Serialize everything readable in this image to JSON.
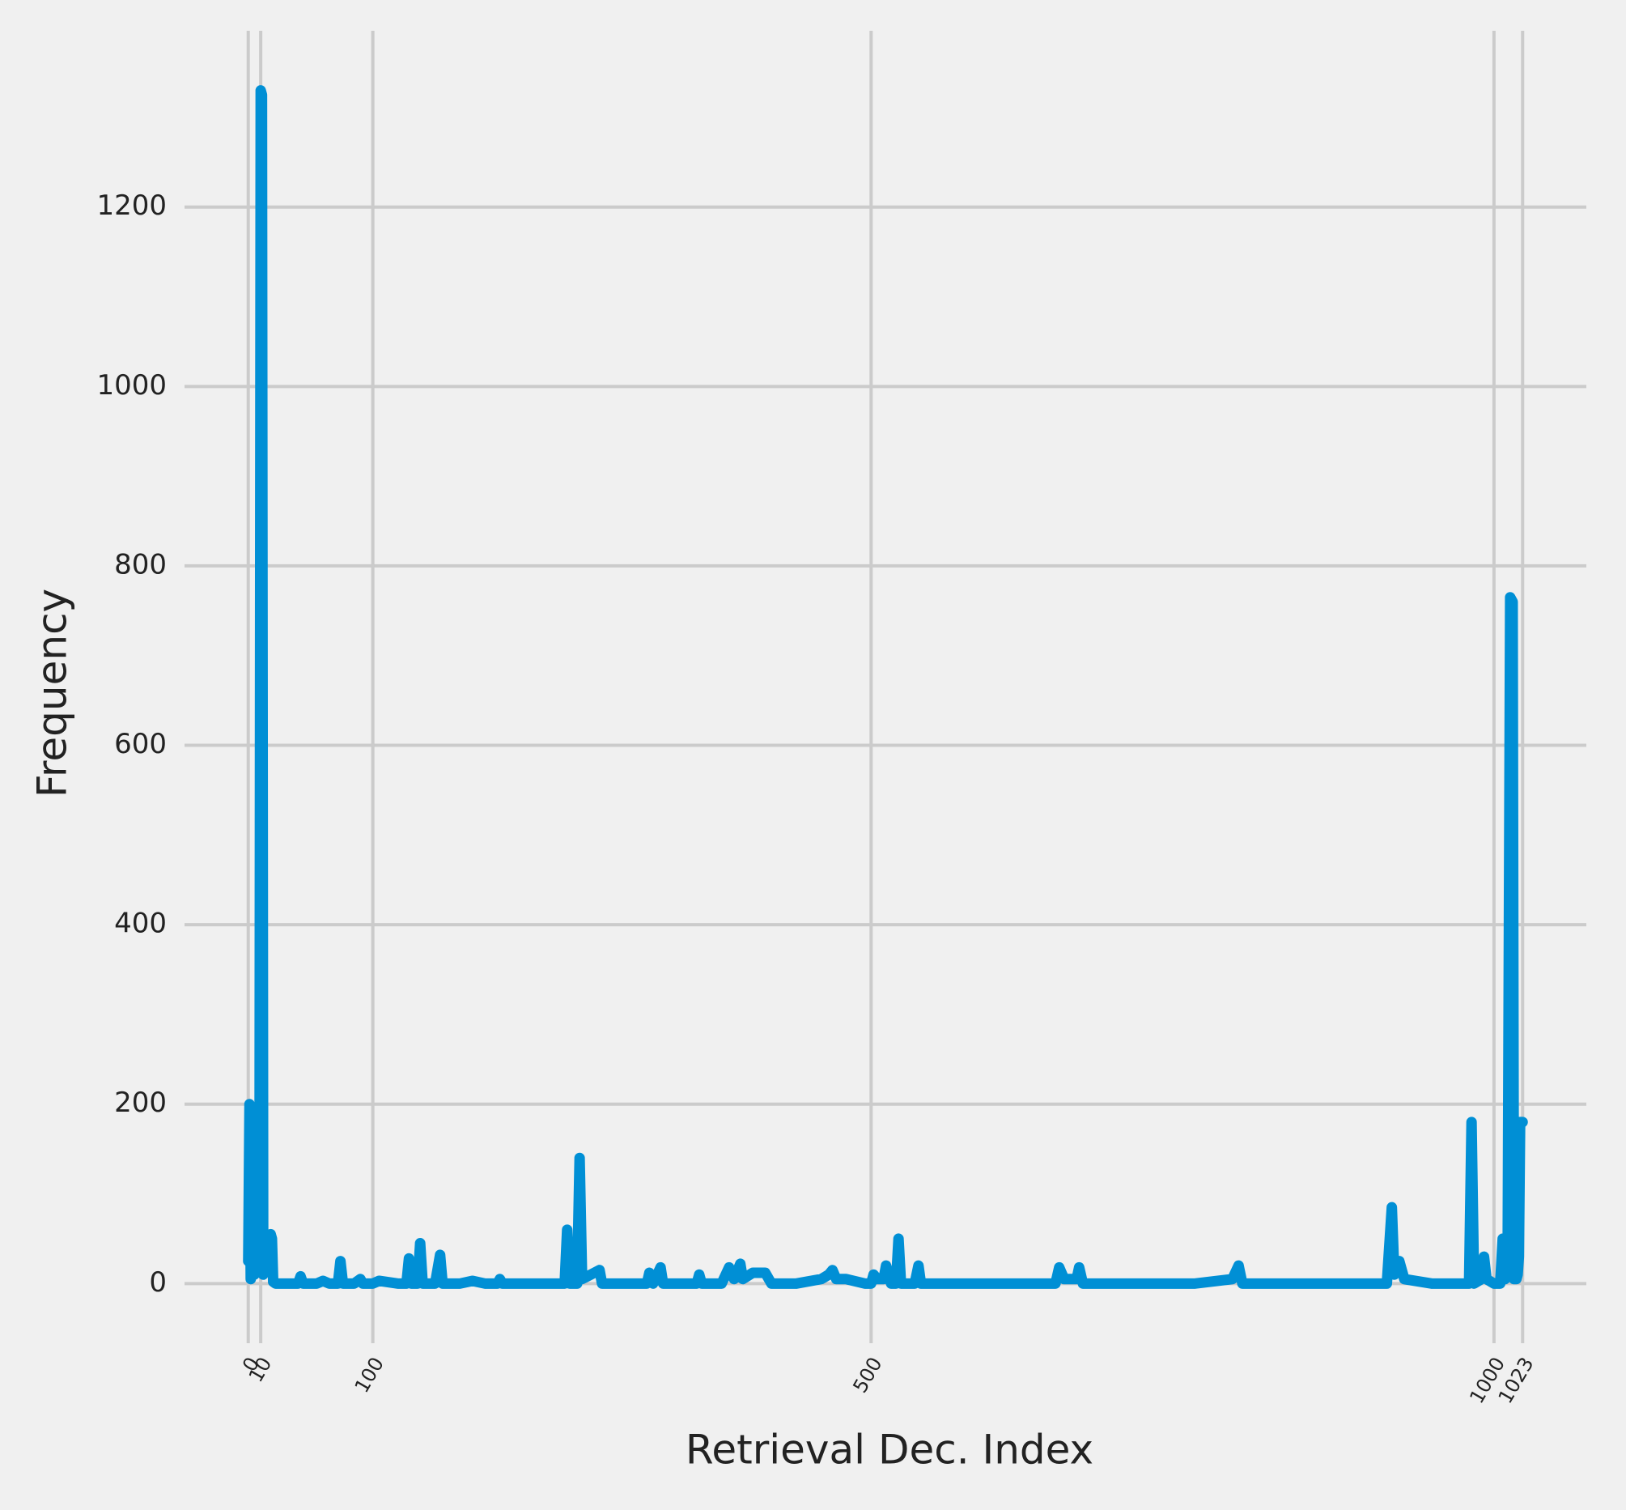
{
  "chart_data": {
    "type": "line",
    "xlabel": "Retrieval Dec. Index",
    "ylabel": "Frequency",
    "color": "#008fd5",
    "grid": true,
    "x": [
      0,
      1,
      2,
      3,
      5,
      7,
      9,
      10,
      11,
      12,
      13,
      15,
      17,
      18,
      19,
      20,
      22,
      30,
      40,
      42,
      44,
      55,
      60,
      65,
      72,
      74,
      76,
      85,
      90,
      92,
      100,
      105,
      120,
      127,
      129,
      131,
      136,
      138,
      140,
      150,
      154,
      156,
      170,
      180,
      190,
      200,
      202,
      204,
      230,
      250,
      254,
      256,
      258,
      264,
      266,
      268,
      275,
      282,
      284,
      290,
      300,
      320,
      322,
      325,
      331,
      333,
      350,
      360,
      362,
      364,
      380,
      386,
      390,
      395,
      397,
      405,
      410,
      415,
      420,
      440,
      460,
      466,
      469,
      472,
      480,
      495,
      500,
      502,
      505,
      510,
      512,
      516,
      520,
      522,
      524,
      535,
      538,
      540,
      560,
      600,
      630,
      648,
      651,
      655,
      665,
      667,
      670,
      700,
      720,
      760,
      790,
      795,
      798,
      830,
      860,
      900,
      914,
      918,
      920,
      924,
      928,
      950,
      970,
      980,
      982,
      984,
      990,
      992,
      994,
      1000,
      1005,
      1007,
      1009,
      1011,
      1013,
      1015,
      1016,
      1018,
      1019,
      1020,
      1021,
      1022,
      1023
    ],
    "values": [
      25,
      200,
      5,
      30,
      10,
      40,
      15,
      1330,
      1325,
      10,
      40,
      20,
      50,
      55,
      50,
      2,
      0,
      0,
      0,
      8,
      0,
      0,
      3,
      0,
      0,
      25,
      0,
      0,
      5,
      0,
      0,
      3,
      0,
      0,
      28,
      0,
      0,
      45,
      0,
      0,
      32,
      0,
      0,
      3,
      0,
      0,
      5,
      0,
      0,
      0,
      0,
      60,
      0,
      0,
      140,
      5,
      10,
      15,
      0,
      0,
      0,
      0,
      12,
      0,
      18,
      0,
      0,
      0,
      10,
      0,
      0,
      18,
      5,
      22,
      5,
      12,
      12,
      12,
      0,
      0,
      5,
      10,
      15,
      5,
      5,
      0,
      0,
      10,
      5,
      5,
      20,
      0,
      0,
      50,
      0,
      0,
      20,
      0,
      0,
      0,
      0,
      0,
      18,
      5,
      5,
      18,
      0,
      0,
      0,
      0,
      5,
      20,
      0,
      0,
      0,
      0,
      0,
      85,
      10,
      25,
      5,
      0,
      0,
      0,
      180,
      0,
      5,
      30,
      5,
      0,
      0,
      50,
      5,
      30,
      765,
      760,
      5,
      5,
      10,
      30,
      180,
      180,
      180
    ],
    "xlim": [
      -51.15,
      1074.15
    ],
    "ylim": [
      -66.5,
      1396.5
    ],
    "xticks": [
      0,
      10,
      100,
      500,
      1000,
      1023
    ],
    "yticks": [
      0,
      200,
      400,
      600,
      800,
      1000,
      1200
    ]
  }
}
